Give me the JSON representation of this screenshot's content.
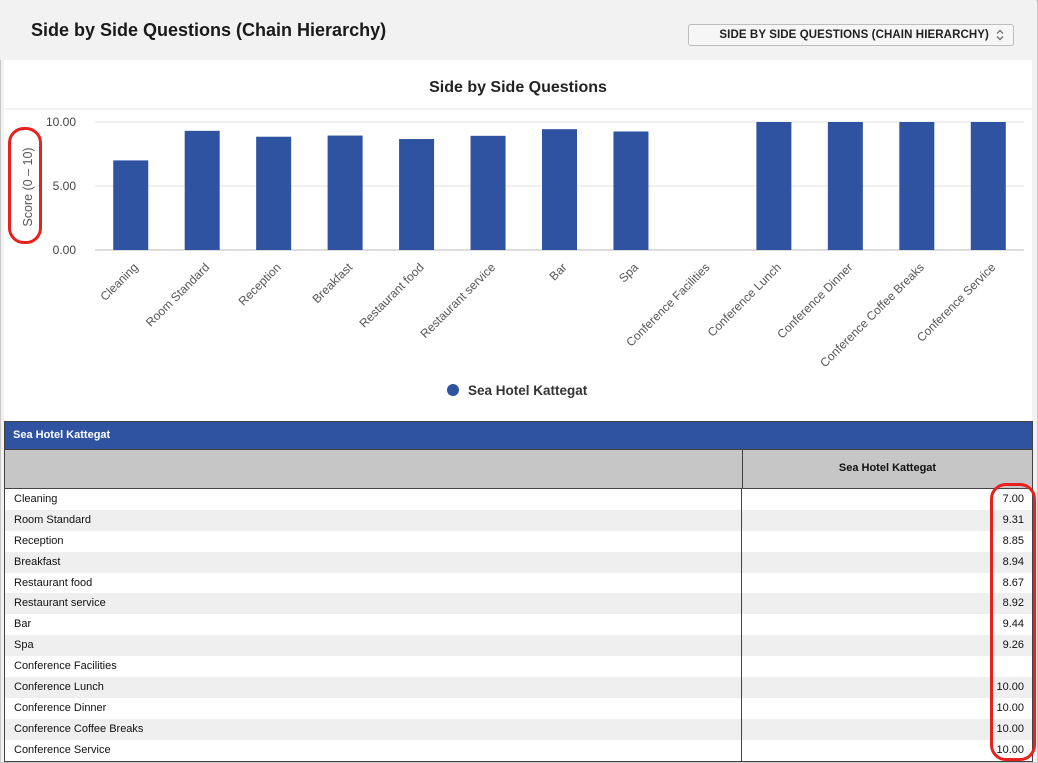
{
  "header": {
    "title": "Side by Side Questions (Chain Hierarchy)",
    "selector_label": "SIDE BY SIDE QUESTIONS (CHAIN HIERARCHY)"
  },
  "chart_data": {
    "type": "bar",
    "title": "Side by Side Questions",
    "ylabel": "Score (0 – 10)",
    "xlabel": "",
    "ylim": [
      0,
      10
    ],
    "yticks": [
      "0.00",
      "5.00",
      "10.00"
    ],
    "categories": [
      "Cleaning",
      "Room Standard",
      "Reception",
      "Breakfast",
      "Restaurant food",
      "Restaurant service",
      "Bar",
      "Spa",
      "Conference Facilities",
      "Conference Lunch",
      "Conference Dinner",
      "Conference Coffee Breaks",
      "Conference Service"
    ],
    "series": [
      {
        "name": "Sea Hotel Kattegat",
        "color": "#2f53a0",
        "values": [
          7.0,
          9.31,
          8.85,
          8.94,
          8.67,
          8.92,
          9.44,
          9.26,
          null,
          10.0,
          10.0,
          10.0,
          10.0
        ]
      }
    ],
    "legend": "bottom-center",
    "grid": true
  },
  "table": {
    "title": "Sea Hotel Kattegat",
    "column_header": "Sea Hotel Kattegat",
    "rows": [
      {
        "label": "Cleaning",
        "value": "7.00"
      },
      {
        "label": "Room Standard",
        "value": "9.31"
      },
      {
        "label": "Reception",
        "value": "8.85"
      },
      {
        "label": "Breakfast",
        "value": "8.94"
      },
      {
        "label": "Restaurant food",
        "value": "8.67"
      },
      {
        "label": "Restaurant service",
        "value": "8.92"
      },
      {
        "label": "Bar",
        "value": "9.44"
      },
      {
        "label": "Spa",
        "value": "9.26"
      },
      {
        "label": "Conference Facilities",
        "value": ""
      },
      {
        "label": "Conference Lunch",
        "value": "10.00"
      },
      {
        "label": "Conference Dinner",
        "value": "10.00"
      },
      {
        "label": "Conference Coffee Breaks",
        "value": "10.00"
      },
      {
        "label": "Conference Service",
        "value": "10.00"
      }
    ]
  },
  "colors": {
    "accent": "#2f53a0",
    "highlight": "#e8211f"
  }
}
